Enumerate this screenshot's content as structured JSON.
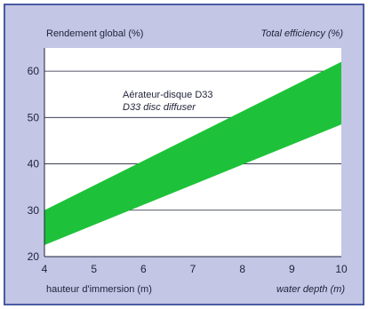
{
  "header": {
    "left_label": "Rendement global (%)",
    "right_label": "Total efficiency (%)"
  },
  "footer": {
    "left_label": "hauteur d'immersion (m)",
    "right_label": "water depth (m)"
  },
  "annotation": {
    "line1": "Aérateur-disque D33",
    "line2": "D33 disc diffuser"
  },
  "colors": {
    "panel_bg": "#c3c6e5",
    "plot_bg": "#ffffff",
    "band": "#1ec23a",
    "border": "#4a5aa0",
    "text": "#1f2238"
  },
  "chart_data": {
    "type": "area",
    "xlabel": "hauteur d'immersion (m) / water depth (m)",
    "ylabel": "Rendement global (%) / Total efficiency (%)",
    "xlim": [
      4,
      10
    ],
    "ylim": [
      20,
      65
    ],
    "x_ticks": [
      4,
      5,
      6,
      7,
      8,
      9,
      10
    ],
    "y_ticks": [
      20,
      30,
      40,
      50,
      60
    ],
    "grid": "horizontal",
    "series": [
      {
        "lower": [
          [
            4,
            22.5
          ],
          [
            10,
            48.5
          ]
        ],
        "upper": [
          [
            4,
            30
          ],
          [
            10,
            62
          ]
        ]
      }
    ]
  }
}
